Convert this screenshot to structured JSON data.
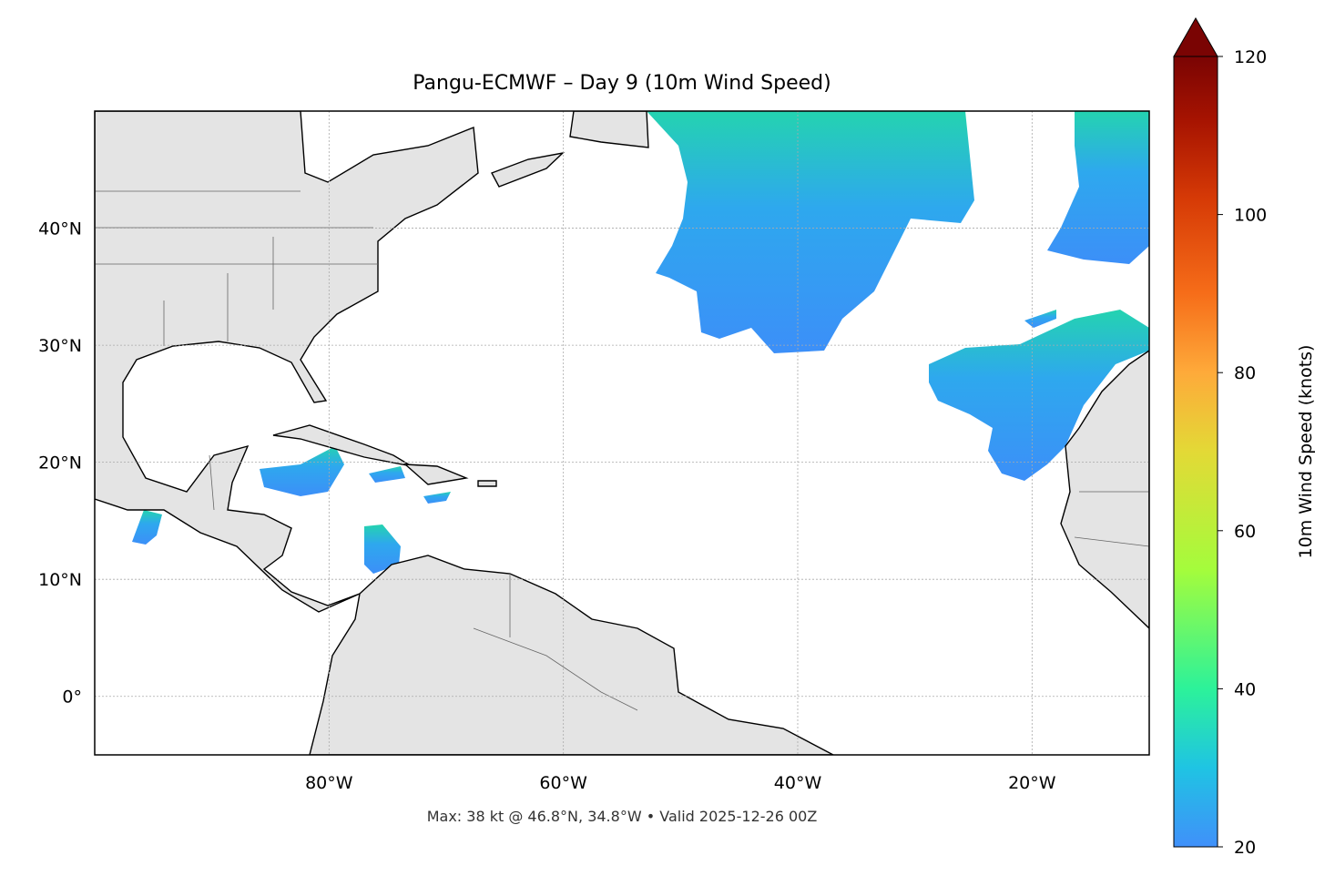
{
  "map": {
    "title": "Pangu-ECMWF – Day 9 (10m Wind Speed)",
    "xlim": [
      -100,
      -10
    ],
    "ylim": [
      -5,
      50
    ],
    "xticks": [
      {
        "value": -80,
        "label": "80°W"
      },
      {
        "value": -60,
        "label": "60°W"
      },
      {
        "value": -40,
        "label": "40°W"
      },
      {
        "value": -20,
        "label": "20°W"
      }
    ],
    "yticks": [
      {
        "value": 0,
        "label": "0°"
      },
      {
        "value": 10,
        "label": "10°N"
      },
      {
        "value": 20,
        "label": "20°N"
      },
      {
        "value": 30,
        "label": "30°N"
      },
      {
        "value": 40,
        "label": "40°N"
      }
    ],
    "grid": true,
    "colorbar": {
      "label": "10m Wind Speed (knots)",
      "lim": [
        20,
        120
      ],
      "ticks": [
        20,
        40,
        60,
        80,
        100,
        120
      ]
    },
    "footer": "Max: 38 kt @ 46.8°N, 34.8°W • Valid 2025-12-26 00Z"
  }
}
